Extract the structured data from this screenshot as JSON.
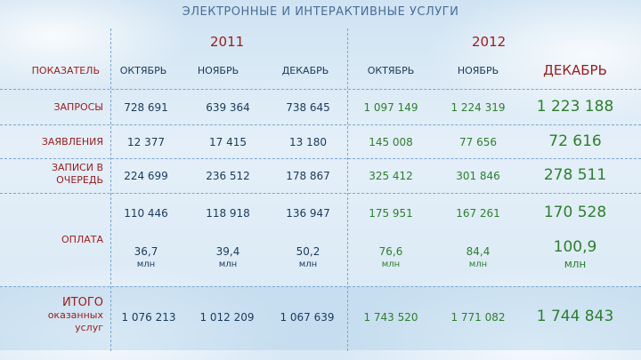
{
  "title": "ЭЛЕКТРОННЫЕ И ИНТЕРАКТИВНЫЕ УСЛУГИ",
  "years": [
    "2011",
    "2012"
  ],
  "columns_header": "ПОКАЗАТЕЛЬ",
  "months": [
    "ОКТЯБРЬ",
    "НОЯБРЬ",
    "ДЕКАБРЬ",
    "ОКТЯБРЬ",
    "НОЯБРЬ",
    "ДЕКАБРЬ"
  ],
  "rows": {
    "requests": {
      "label": "ЗАПРОСЫ",
      "values": [
        "728 691",
        "639 364",
        "738 645",
        "1 097 149",
        "1 224 319",
        "1 223 188"
      ]
    },
    "applications": {
      "label": "ЗАЯВЛЕНИЯ",
      "values": [
        "12 377",
        "17 415",
        "13 180",
        "145 008",
        "77 656",
        "72 616"
      ]
    },
    "queue": {
      "label_line1": "ЗАПИСИ В",
      "label_line2": "ОЧЕРЕДЬ",
      "values": [
        "224 699",
        "236 512",
        "178 867",
        "325 412",
        "301 846",
        "278 511"
      ]
    },
    "payment_count": {
      "values": [
        "110 446",
        "118 918",
        "136 947",
        "175 951",
        "167 261",
        "170 528"
      ]
    },
    "payment": {
      "label": "ОПЛАТА"
    },
    "payment_amount": {
      "values": [
        "36,7",
        "39,4",
        "50,2",
        "76,6",
        "84,4",
        "100,9"
      ],
      "unit": "млн"
    },
    "total": {
      "label_line1": "ИТОГО",
      "label_line2": "оказанных",
      "label_line3": "услуг",
      "values": [
        "1 076 213",
        "1 012 209",
        "1 067 639",
        "1 743 520",
        "1 771 082",
        "1 744 843"
      ]
    }
  },
  "colors": {
    "label": "#9b1c1c",
    "value_2011": "#1a3a5c",
    "value_2012": "#2d7f2d",
    "title": "#4a6d9c"
  }
}
